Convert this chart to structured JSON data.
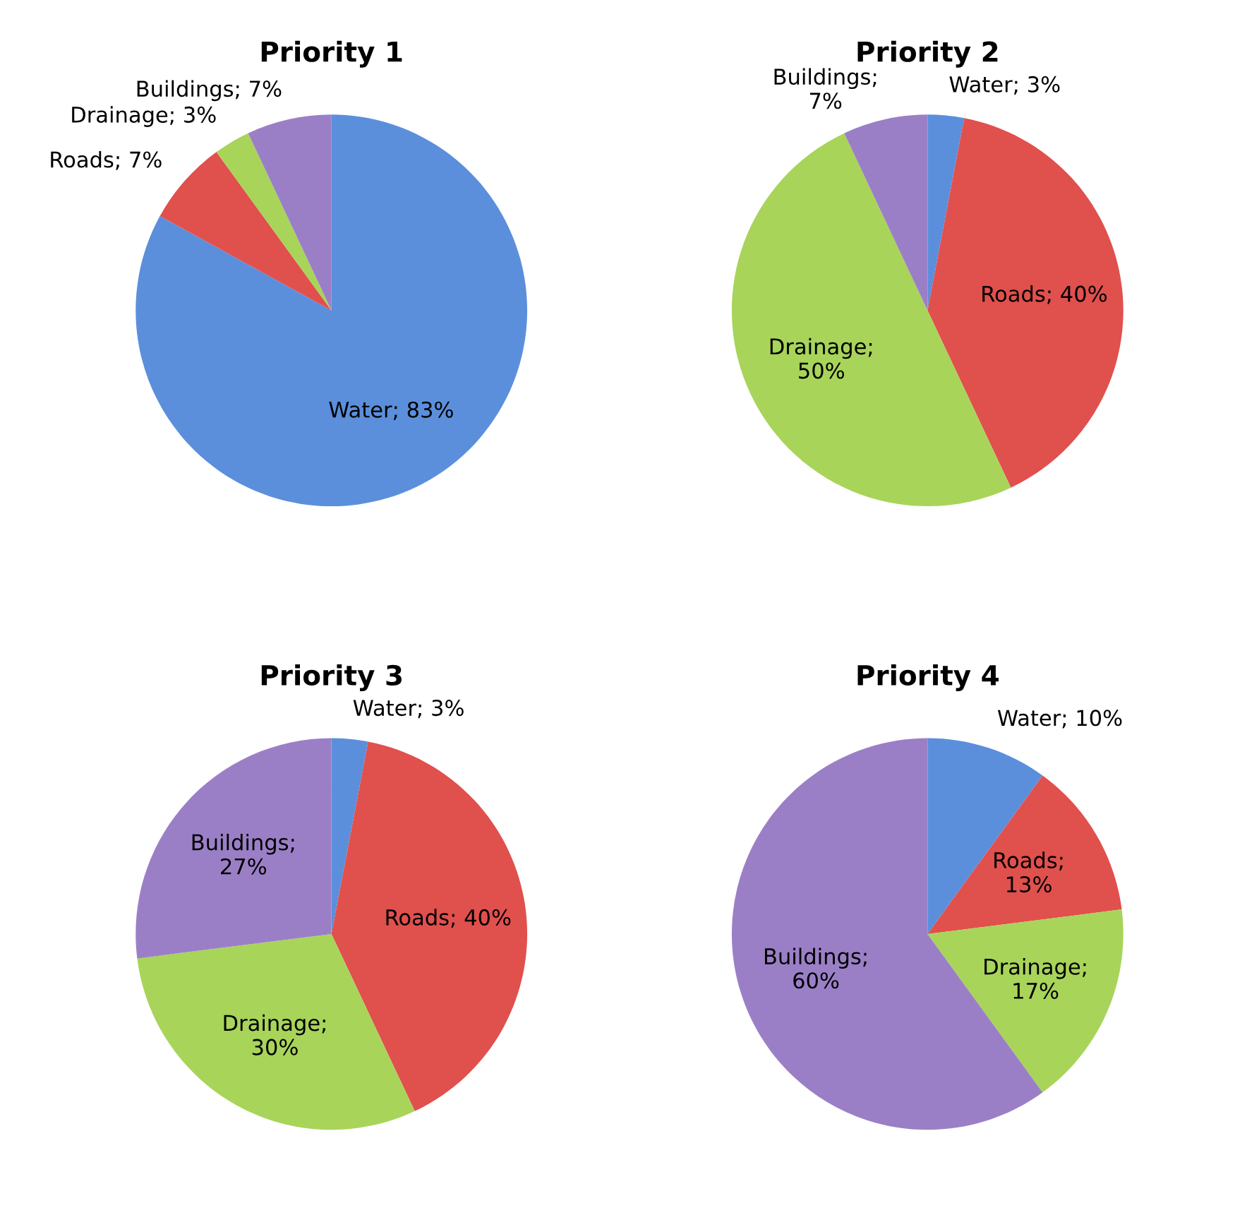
{
  "chart_data": [
    {
      "type": "pie",
      "title": "Priority 1",
      "categories": [
        "Water",
        "Roads",
        "Drainage",
        "Buildings"
      ],
      "values": [
        83,
        7,
        3,
        7
      ],
      "colors": [
        "#5b8fdc",
        "#e0504d",
        "#a8d45a",
        "#9b7fc6"
      ],
      "value_labels": [
        "; 83%",
        "; 7%",
        "; 3%",
        "; 7%"
      ]
    },
    {
      "type": "pie",
      "title": "Priority 2",
      "categories": [
        "Water",
        "Roads",
        "Drainage",
        "Buildings"
      ],
      "values": [
        3,
        40,
        50,
        7
      ],
      "colors": [
        "#5b8fdc",
        "#e0504d",
        "#a8d45a",
        "#9b7fc6"
      ],
      "value_labels": [
        "; 3%",
        "; 40%",
        ";\n50%",
        ";\n7%"
      ]
    },
    {
      "type": "pie",
      "title": "Priority 3",
      "categories": [
        "Water",
        "Roads",
        "Drainage",
        "Buildings"
      ],
      "values": [
        3,
        40,
        30,
        27
      ],
      "colors": [
        "#5b8fdc",
        "#e0504d",
        "#a8d45a",
        "#9b7fc6"
      ],
      "value_labels": [
        "; 3%",
        "; 40%",
        ";\n30%",
        ";\n27%"
      ]
    },
    {
      "type": "pie",
      "title": "Priority 4",
      "categories": [
        "Water",
        "Roads",
        "Drainage",
        "Buildings"
      ],
      "values": [
        10,
        13,
        17,
        60
      ],
      "colors": [
        "#5b8fdc",
        "#e0504d",
        "#a8d45a",
        "#9b7fc6"
      ],
      "value_labels": [
        "; 10%",
        ";\n13%",
        ";\n17%",
        ";\n60%"
      ]
    }
  ]
}
